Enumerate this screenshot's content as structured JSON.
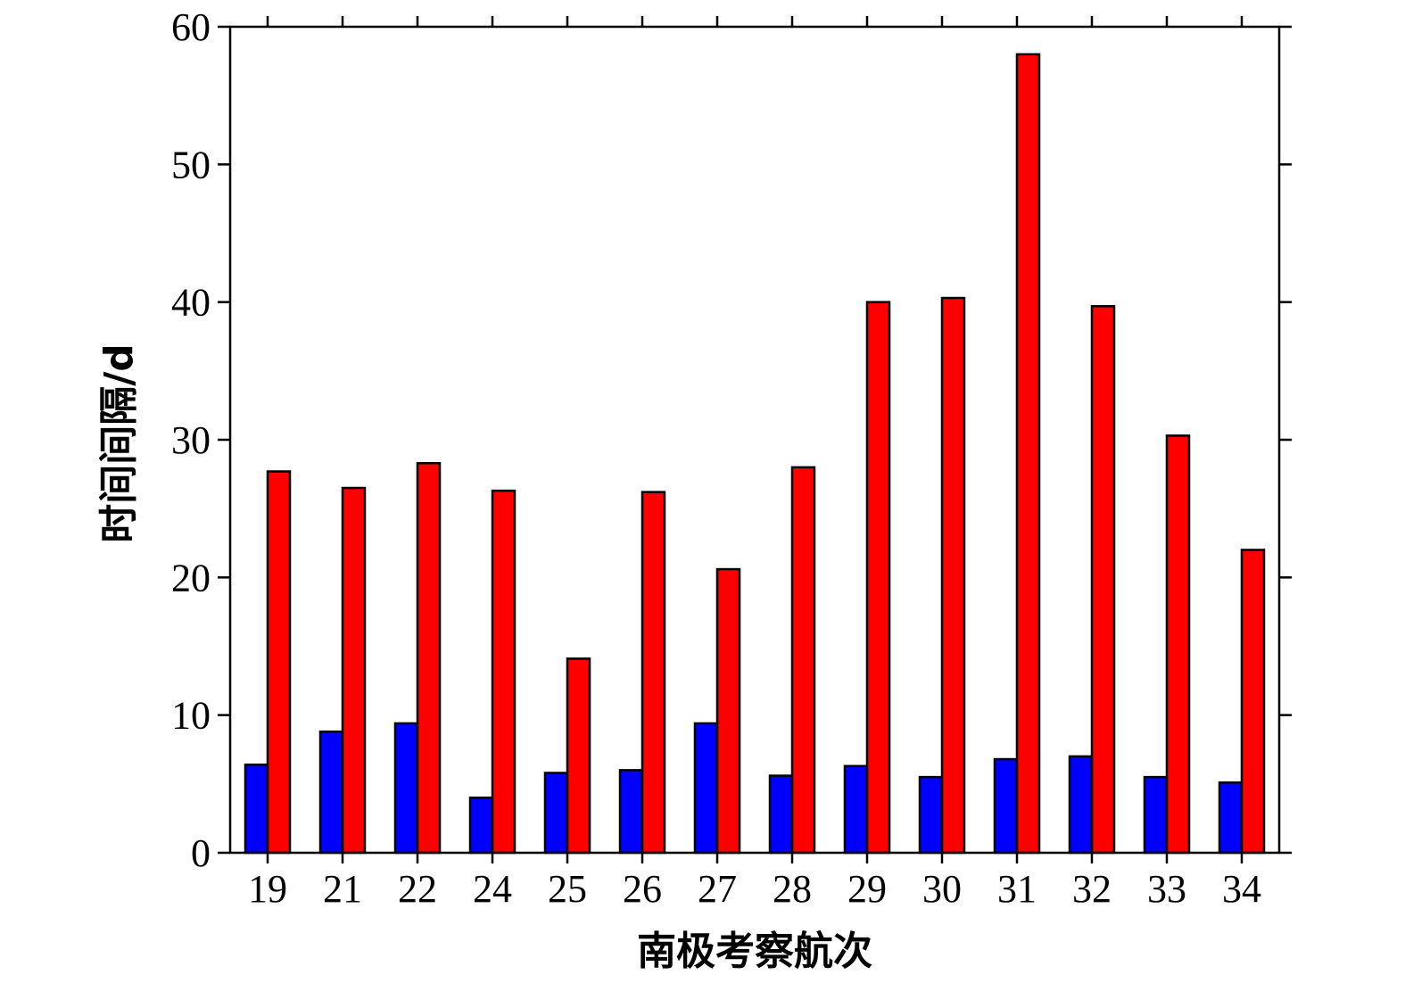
{
  "chart_data": {
    "type": "bar",
    "title": "",
    "xlabel": "南极考察航次",
    "ylabel": "时间间隔/d",
    "categories": [
      "19",
      "21",
      "22",
      "24",
      "25",
      "26",
      "27",
      "28",
      "29",
      "30",
      "31",
      "32",
      "33",
      "34"
    ],
    "ylim": [
      0,
      60
    ],
    "yticks": [
      0,
      10,
      20,
      30,
      40,
      50,
      60
    ],
    "grid": false,
    "legend": "none",
    "series": [
      {
        "color": "#0000ff",
        "values": [
          6.4,
          8.8,
          9.4,
          4.0,
          5.8,
          6.0,
          9.4,
          5.6,
          6.3,
          5.5,
          6.8,
          7.0,
          5.5,
          5.1
        ]
      },
      {
        "color": "#ff0000",
        "values": [
          27.7,
          26.5,
          28.3,
          26.3,
          14.1,
          26.2,
          20.6,
          28.0,
          40.0,
          40.3,
          58.0,
          39.7,
          30.3,
          22.0
        ]
      }
    ]
  }
}
